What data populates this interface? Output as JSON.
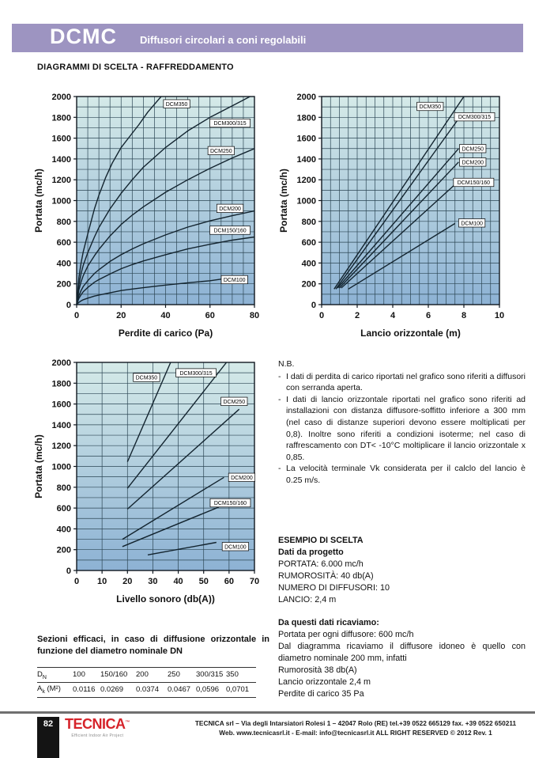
{
  "colors": {
    "accent_purple": "#9d94c1",
    "logo_red": "#d6232a",
    "chart_grad_top": "#d5eae8",
    "chart_grad_bottom": "#8db2d4",
    "grid_line": "#2c4654",
    "series_line": "#13242f"
  },
  "header": {
    "code": "DCMC",
    "subtitle": "Diffusori circolari a coni regolabili"
  },
  "section_title": "DIAGRAMMI DI SCELTA - RAFFREDDAMENTO",
  "chart_data": [
    {
      "type": "line",
      "title": "Perdite di carico",
      "xlabel": "Perdite di carico (Pa)",
      "ylabel": "Portata (mc/h)",
      "xlim": [
        0,
        80
      ],
      "ylim": [
        0,
        2000
      ],
      "x_major_ticks": [
        0,
        20,
        40,
        60,
        80
      ],
      "x_grid_step": 5,
      "y_grid_step": 100,
      "y_tick_step": 200,
      "grid": true,
      "legend_position": "inline-labels",
      "series": [
        {
          "name": "DCM350",
          "points": [
            [
              0,
              0
            ],
            [
              1,
              260
            ],
            [
              2,
              400
            ],
            [
              3,
              510
            ],
            [
              5,
              680
            ],
            [
              8,
              920
            ],
            [
              10,
              1050
            ],
            [
              13,
              1220
            ],
            [
              16,
              1360
            ],
            [
              20,
              1510
            ],
            [
              24,
              1620
            ],
            [
              28,
              1730
            ],
            [
              32,
              1850
            ],
            [
              38,
              2000
            ]
          ],
          "label_at": [
            45,
            1930
          ]
        },
        {
          "name": "DCM300/315",
          "points": [
            [
              0,
              0
            ],
            [
              1,
              190
            ],
            [
              2,
              300
            ],
            [
              3,
              380
            ],
            [
              5,
              500
            ],
            [
              8,
              650
            ],
            [
              10,
              740
            ],
            [
              15,
              920
            ],
            [
              20,
              1070
            ],
            [
              25,
              1200
            ],
            [
              30,
              1320
            ],
            [
              40,
              1510
            ],
            [
              50,
              1670
            ],
            [
              60,
              1800
            ],
            [
              70,
              1910
            ],
            [
              78,
              2000
            ]
          ],
          "label_at": [
            69,
            1745
          ]
        },
        {
          "name": "DCM250",
          "points": [
            [
              0,
              0
            ],
            [
              1,
              140
            ],
            [
              2,
              220
            ],
            [
              3,
              280
            ],
            [
              5,
              370
            ],
            [
              8,
              470
            ],
            [
              10,
              530
            ],
            [
              15,
              660
            ],
            [
              20,
              770
            ],
            [
              25,
              860
            ],
            [
              30,
              940
            ],
            [
              40,
              1080
            ],
            [
              50,
              1200
            ],
            [
              60,
              1310
            ],
            [
              70,
              1410
            ],
            [
              80,
              1500
            ]
          ],
          "label_at": [
            65,
            1480
          ]
        },
        {
          "name": "DCM200",
          "points": [
            [
              0,
              0
            ],
            [
              1,
              85
            ],
            [
              2,
              135
            ],
            [
              3,
              175
            ],
            [
              5,
              230
            ],
            [
              8,
              300
            ],
            [
              10,
              335
            ],
            [
              15,
              415
            ],
            [
              20,
              480
            ],
            [
              25,
              535
            ],
            [
              30,
              585
            ],
            [
              40,
              670
            ],
            [
              50,
              745
            ],
            [
              60,
              805
            ],
            [
              70,
              855
            ],
            [
              80,
              900
            ]
          ],
          "label_at": [
            69,
            925
          ]
        },
        {
          "name": "DCM150/160",
          "points": [
            [
              0,
              0
            ],
            [
              1,
              60
            ],
            [
              2,
              95
            ],
            [
              3,
              125
            ],
            [
              5,
              165
            ],
            [
              8,
              215
            ],
            [
              10,
              240
            ],
            [
              15,
              295
            ],
            [
              20,
              345
            ],
            [
              25,
              385
            ],
            [
              30,
              420
            ],
            [
              40,
              480
            ],
            [
              50,
              535
            ],
            [
              60,
              580
            ],
            [
              70,
              620
            ],
            [
              80,
              650
            ]
          ],
          "label_at": [
            69,
            715
          ]
        },
        {
          "name": "DCM100",
          "points": [
            [
              0,
              0
            ],
            [
              1,
              22
            ],
            [
              2,
              36
            ],
            [
              3,
              47
            ],
            [
              5,
              62
            ],
            [
              8,
              82
            ],
            [
              10,
              92
            ],
            [
              15,
              113
            ],
            [
              20,
              135
            ],
            [
              25,
              150
            ],
            [
              30,
              163
            ],
            [
              40,
              188
            ],
            [
              50,
              210
            ],
            [
              60,
              230
            ],
            [
              65,
              245
            ]
          ],
          "label_at": [
            71,
            240
          ]
        }
      ]
    },
    {
      "type": "line",
      "title": "Lancio orizzontale",
      "xlabel": "Lancio orizzontale (m)",
      "ylabel": "Portata (mc/h)",
      "xlim": [
        0,
        10
      ],
      "ylim": [
        0,
        2000
      ],
      "x_major_ticks": [
        0,
        2,
        4,
        6,
        8,
        10
      ],
      "x_grid_step": 0.5,
      "y_grid_step": 100,
      "y_tick_step": 200,
      "grid": true,
      "legend_position": "inline-labels",
      "series": [
        {
          "name": "DCM350",
          "points": [
            [
              0.7,
              150
            ],
            [
              8.0,
              2000
            ]
          ],
          "label_at": [
            6.1,
            1905
          ]
        },
        {
          "name": "DCM300/315",
          "points": [
            [
              0.8,
              150
            ],
            [
              7.8,
              1810
            ]
          ],
          "label_at": [
            8.6,
            1805
          ]
        },
        {
          "name": "DCM250",
          "points": [
            [
              0.9,
              160
            ],
            [
              7.7,
              1500
            ]
          ],
          "label_at": [
            8.5,
            1500
          ]
        },
        {
          "name": "DCM200",
          "points": [
            [
              1.0,
              160
            ],
            [
              7.7,
              1370
            ]
          ],
          "label_at": [
            8.5,
            1370
          ]
        },
        {
          "name": "DCM150/160",
          "points": [
            [
              1.1,
              160
            ],
            [
              7.6,
              1170
            ]
          ],
          "label_at": [
            8.55,
            1175
          ]
        },
        {
          "name": "DCM100",
          "points": [
            [
              1.5,
              150
            ],
            [
              7.5,
              780
            ]
          ],
          "label_at": [
            8.45,
            785
          ]
        }
      ]
    },
    {
      "type": "line",
      "title": "Livello sonoro",
      "xlabel": "Livello sonoro (db(A))",
      "ylabel": "Portata (mc/h)",
      "xlim": [
        0,
        70
      ],
      "ylim": [
        0,
        2000
      ],
      "x_major_ticks": [
        0,
        10,
        20,
        30,
        40,
        50,
        60,
        70
      ],
      "x_grid_step": 10,
      "y_grid_step": 100,
      "y_tick_step": 200,
      "grid": true,
      "legend_position": "inline-labels",
      "series": [
        {
          "name": "DCM350",
          "points": [
            [
              20,
              1045
            ],
            [
              37,
              2000
            ]
          ],
          "label_at": [
            27.5,
            1855
          ]
        },
        {
          "name": "DCM300/315",
          "points": [
            [
              20,
              790
            ],
            [
              59,
              2000
            ]
          ],
          "label_at": [
            47,
            1900
          ]
        },
        {
          "name": "DCM250",
          "points": [
            [
              20,
              590
            ],
            [
              64,
              1550
            ]
          ],
          "label_at": [
            62,
            1625
          ]
        },
        {
          "name": "DCM200",
          "points": [
            [
              18,
              300
            ],
            [
              58,
              895
            ]
          ],
          "label_at": [
            65,
            895
          ]
        },
        {
          "name": "DCM150/160",
          "points": [
            [
              18,
              230
            ],
            [
              56,
              610
            ]
          ],
          "label_at": [
            60.5,
            650
          ]
        },
        {
          "name": "DCM100",
          "points": [
            [
              28,
              150
            ],
            [
              55,
              270
            ]
          ],
          "label_at": [
            62.5,
            230
          ]
        }
      ]
    }
  ],
  "notes": {
    "title": "N.B.",
    "bullet": "-",
    "items": [
      "I dati di perdita di carico riportati nel grafico sono riferiti a diffusori con serranda aperta.",
      "I dati di lancio orizzontale riportati nel grafico sono riferiti ad installazioni con distanza diffusore-soffitto inferiore a 300 mm (nel caso di distanze superiori devono essere moltiplicati per 0,8). Inoltre sono riferiti a condizioni isoterme; nel caso di raffrescamento con  DT< -10°C moltiplicare il lancio orizzontale x 0,85.",
      "La velocità terminale Vk considerata per il calclo del lancio è 0.25 m/s."
    ]
  },
  "example": {
    "title": "ESEMPIO DI SCELTA",
    "subtitle1": "Dati da progetto",
    "given": [
      "PORTATA: 6.000 mc/h",
      "RUMOROSITÀ: 40 db(A)",
      "NUMERO DI DIFFUSORI: 10",
      "LANCIO: 2,4 m"
    ],
    "subtitle2": "Da questi dati ricaviamo:",
    "derived": [
      "Portata per ogni diffusore: 600 mc/h",
      "Dal diagramma ricaviamo il diffusore idoneo è quello con diametro nominale 200 mm, infatti",
      "Rumorosità 38 db(A)",
      "Lancio orizzontale 2,4 m",
      "Perdite di carico 35 Pa"
    ]
  },
  "sections_table": {
    "title": "Sezioni efficaci, in caso di diffusione orizzontale in funzione del diametro nominale DN",
    "row1_label": {
      "base": "D",
      "sub": "N"
    },
    "row2_label": {
      "base": "A",
      "sub": "k",
      "suffix": " (M²)"
    },
    "columns": [
      "100",
      "150/160",
      "200",
      "250",
      "300/315",
      "350"
    ],
    "values": [
      "0.0116",
      "0.0269",
      "0.0374",
      "0.0467",
      "0,0596",
      "0,0701"
    ]
  },
  "footer": {
    "page_number": "82",
    "logo_text": "TECNICA",
    "logo_tm": "™",
    "logo_tagline": "Efficient Indoor Air Project",
    "address_line1": "TECNICA srl – Via degli Intarsiatori Rolesi 1 – 42047 Rolo (RE) tel.+39 0522 665129 fax. +39 0522 650211",
    "address_line2": "Web. www.tecnicasrl.it  -  E-mail: info@tecnicasrl.it   ALL RIGHT RESERVED   © 2012   Rev. 1"
  }
}
